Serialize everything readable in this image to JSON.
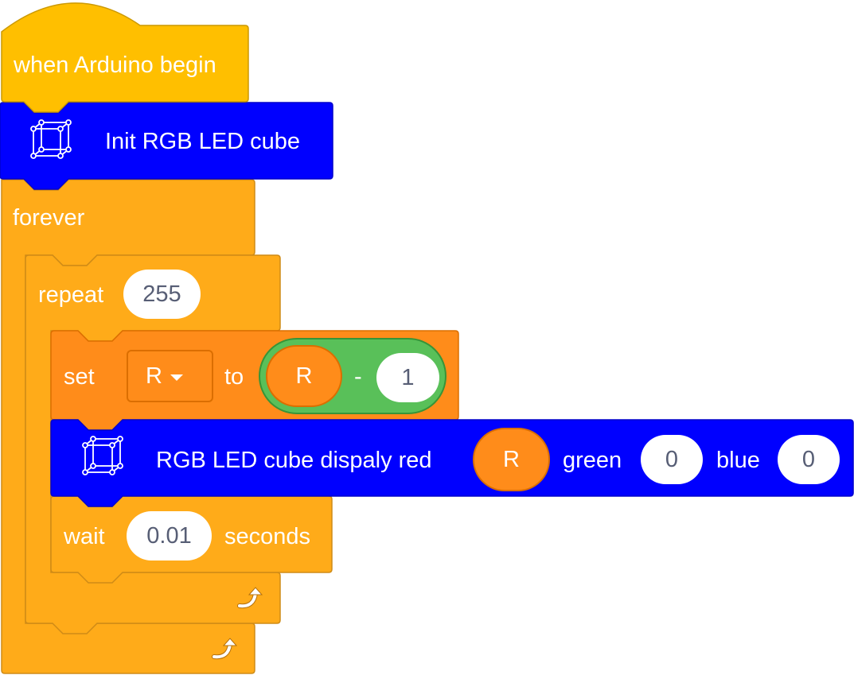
{
  "hat": {
    "label": "when Arduino begin"
  },
  "init": {
    "label": "Init RGB LED cube",
    "icon": "led-cube-icon"
  },
  "forever": {
    "label": "forever",
    "loop_icon": "loop-arrow-icon"
  },
  "repeat": {
    "label": "repeat",
    "count": "255",
    "loop_icon": "loop-arrow-icon"
  },
  "set": {
    "label": "set",
    "variable": "R",
    "to_label": "to",
    "operator": {
      "left": "R",
      "symbol": "-",
      "right": "1"
    }
  },
  "display": {
    "label": "RGB LED cube dispaly red",
    "red": "R",
    "green_label": "green",
    "green": "0",
    "blue_label": "blue",
    "blue": "0",
    "icon": "led-cube-icon"
  },
  "wait": {
    "label": "wait",
    "value": "0.01",
    "unit": "seconds"
  },
  "colors": {
    "hat": "#ffbf00",
    "control": "#ffab19",
    "variables": "#ff8c1a",
    "extension": "#0000ff",
    "operators": "#59c059"
  }
}
